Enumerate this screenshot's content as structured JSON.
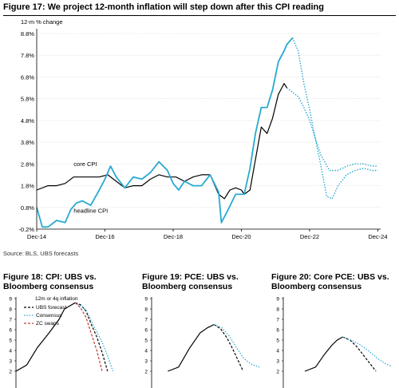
{
  "main": {
    "title": "Figure 17: We project 12-month inflation will step down after this CPI reading",
    "source": "Source: BLS, UBS forecasts"
  },
  "colors": {
    "core": "#000000",
    "headline": "#29a9d1",
    "forecast": "#29a9d1",
    "swap": "#c0392b"
  },
  "chart_data": [
    {
      "type": "line",
      "title": "Figure 17: We project 12-month inflation will step down after this CPI reading",
      "ylabel": "12-m % change",
      "ylim": [
        -0.2,
        8.8
      ],
      "yticks": [
        "-0.2%",
        "0.8%",
        "1.8%",
        "2.8%",
        "3.8%",
        "4.8%",
        "5.8%",
        "6.8%",
        "7.8%",
        "8.8%"
      ],
      "ytick_values": [
        -0.2,
        0.8,
        1.8,
        2.8,
        3.8,
        4.8,
        5.8,
        6.8,
        7.8,
        8.8
      ],
      "xlim": [
        2014.917,
        2025.0
      ],
      "xticks": [
        "Dec-14",
        "Dec-16",
        "Dec-18",
        "Dec-20",
        "Dec-22",
        "Dec-24"
      ],
      "xtick_values": [
        2014.917,
        2016.917,
        2018.917,
        2020.917,
        2022.917,
        2024.917
      ],
      "annotations": [
        {
          "text": "core CPI",
          "x": 2016.0,
          "y": 2.7
        },
        {
          "text": "headline CPI",
          "x": 2016.0,
          "y": 0.55
        }
      ],
      "series": [
        {
          "name": "core CPI",
          "style": "solid",
          "x": [
            2014.917,
            2015.25,
            2015.5,
            2015.75,
            2016.0,
            2016.25,
            2016.5,
            2016.75,
            2017.0,
            2017.25,
            2017.5,
            2017.75,
            2018.0,
            2018.25,
            2018.5,
            2018.75,
            2019.0,
            2019.25,
            2019.5,
            2019.75,
            2020.0,
            2020.25,
            2020.42,
            2020.58,
            2020.75,
            2020.917,
            2021.0,
            2021.17,
            2021.33,
            2021.5,
            2021.67,
            2021.83,
            2022.0,
            2022.17,
            2022.25
          ],
          "y": [
            1.6,
            1.8,
            1.8,
            1.9,
            2.2,
            2.2,
            2.2,
            2.2,
            2.3,
            2.0,
            1.7,
            1.8,
            1.8,
            2.1,
            2.3,
            2.2,
            2.2,
            2.0,
            2.2,
            2.3,
            2.3,
            1.4,
            1.2,
            1.6,
            1.7,
            1.6,
            1.4,
            1.6,
            3.0,
            4.5,
            4.2,
            4.9,
            6.0,
            6.5,
            6.3
          ]
        },
        {
          "name": "headline CPI",
          "style": "solid",
          "x": [
            2014.917,
            2015.08,
            2015.25,
            2015.5,
            2015.75,
            2015.917,
            2016.08,
            2016.25,
            2016.5,
            2016.75,
            2016.917,
            2017.08,
            2017.25,
            2017.5,
            2017.75,
            2018.0,
            2018.25,
            2018.5,
            2018.75,
            2018.917,
            2019.08,
            2019.25,
            2019.5,
            2019.75,
            2020.0,
            2020.25,
            2020.33,
            2020.5,
            2020.75,
            2020.917,
            2021.0,
            2021.17,
            2021.33,
            2021.5,
            2021.67,
            2021.83,
            2022.0,
            2022.17,
            2022.25,
            2022.42
          ],
          "y": [
            0.8,
            -0.1,
            -0.1,
            0.2,
            0.1,
            0.7,
            1.0,
            1.1,
            0.9,
            1.6,
            2.1,
            2.7,
            2.2,
            1.7,
            2.2,
            2.1,
            2.4,
            2.9,
            2.5,
            1.9,
            1.6,
            2.0,
            1.8,
            1.8,
            2.3,
            1.5,
            0.1,
            0.6,
            1.4,
            1.4,
            1.4,
            2.6,
            4.2,
            5.4,
            5.4,
            6.2,
            7.5,
            8.0,
            8.3,
            8.6
          ]
        },
        {
          "name": "core CPI forecast",
          "style": "dotted",
          "x": [
            2022.25,
            2022.42,
            2022.58,
            2022.75,
            2022.917,
            2023.08,
            2023.25,
            2023.5,
            2023.75,
            2024.0,
            2024.25,
            2024.5,
            2024.75,
            2024.917
          ],
          "y": [
            6.3,
            6.1,
            5.9,
            5.4,
            4.8,
            4.0,
            3.2,
            2.5,
            2.5,
            2.7,
            2.8,
            2.8,
            2.7,
            2.7
          ]
        },
        {
          "name": "headline CPI forecast",
          "style": "dotted",
          "x": [
            2022.42,
            2022.58,
            2022.75,
            2022.917,
            2023.08,
            2023.25,
            2023.42,
            2023.58,
            2023.75,
            2024.0,
            2024.25,
            2024.5,
            2024.75,
            2024.917
          ],
          "y": [
            8.6,
            8.0,
            6.5,
            5.3,
            4.0,
            2.7,
            1.3,
            1.2,
            1.8,
            2.3,
            2.5,
            2.6,
            2.5,
            2.5
          ]
        }
      ]
    },
    {
      "type": "line",
      "title": "Figure 18: CPI: UBS vs. Bloomberg consensus",
      "ylabel": "12m or 4q inflation",
      "ylim": [
        2,
        9
      ],
      "yticks": [
        "9",
        "8",
        "7",
        "6",
        "5",
        "4",
        "3",
        "2"
      ],
      "legend": [
        "UBS forecast",
        "Consensus",
        "ZC swaps"
      ],
      "series": [
        {
          "name": "history",
          "style": "solid",
          "x": [
            0,
            0.1,
            0.2,
            0.3,
            0.4,
            0.45,
            0.5,
            0.55
          ],
          "y": [
            2.0,
            2.6,
            4.3,
            5.6,
            7.0,
            8.0,
            8.3,
            8.6
          ]
        },
        {
          "name": "UBS forecast",
          "style": "dashed",
          "x": [
            0.55,
            0.6,
            0.65,
            0.7,
            0.75,
            0.8,
            0.85
          ],
          "y": [
            8.6,
            8.4,
            7.8,
            6.5,
            5.3,
            3.8,
            2.0
          ]
        },
        {
          "name": "Consensus",
          "style": "dotted",
          "x": [
            0.55,
            0.6,
            0.65,
            0.7,
            0.75,
            0.8,
            0.85,
            0.9
          ],
          "y": [
            8.6,
            8.3,
            7.9,
            6.8,
            5.8,
            4.8,
            3.5,
            2.0
          ]
        },
        {
          "name": "ZC swaps",
          "style": "dashed-red",
          "x": [
            0.55,
            0.6,
            0.65,
            0.7,
            0.75,
            0.8
          ],
          "y": [
            8.6,
            8.1,
            7.2,
            5.6,
            4.0,
            2.0
          ]
        }
      ]
    },
    {
      "type": "line",
      "title": "Figure 19: PCE: UBS vs. Bloomberg consensus",
      "ylim": [
        2,
        9
      ],
      "yticks": [
        "9",
        "8",
        "7",
        "6",
        "5",
        "4",
        "3",
        "2"
      ],
      "series": [
        {
          "name": "history",
          "style": "solid",
          "x": [
            0.15,
            0.25,
            0.35,
            0.45,
            0.52,
            0.58
          ],
          "y": [
            2.0,
            2.4,
            4.2,
            5.7,
            6.2,
            6.5
          ]
        },
        {
          "name": "UBS forecast",
          "style": "dashed",
          "x": [
            0.58,
            0.64,
            0.7,
            0.75,
            0.8,
            0.85
          ],
          "y": [
            6.5,
            6.1,
            5.2,
            4.2,
            3.1,
            2.0
          ]
        },
        {
          "name": "Consensus",
          "style": "dotted",
          "x": [
            0.58,
            0.65,
            0.72,
            0.78,
            0.85,
            0.92,
            1.0
          ],
          "y": [
            6.5,
            6.2,
            5.4,
            4.4,
            3.3,
            2.7,
            2.4
          ]
        }
      ]
    },
    {
      "type": "line",
      "title": "Figure 20: Core PCE: UBS vs. Bloomberg consensus",
      "ylim": [
        2,
        9
      ],
      "yticks": [
        "9",
        "8",
        "7",
        "6",
        "5",
        "4",
        "3",
        "2"
      ],
      "series": [
        {
          "name": "history",
          "style": "solid",
          "x": [
            0.2,
            0.3,
            0.38,
            0.45,
            0.5,
            0.55
          ],
          "y": [
            2.0,
            2.4,
            3.6,
            4.5,
            5.0,
            5.3
          ]
        },
        {
          "name": "UBS forecast",
          "style": "dashed",
          "x": [
            0.55,
            0.62,
            0.68,
            0.74,
            0.8,
            0.86
          ],
          "y": [
            5.3,
            5.0,
            4.4,
            3.6,
            2.8,
            2.0
          ]
        },
        {
          "name": "Consensus",
          "style": "dotted",
          "x": [
            0.55,
            0.63,
            0.72,
            0.8,
            0.88,
            0.95,
            1.0
          ],
          "y": [
            5.3,
            5.0,
            4.5,
            3.9,
            3.2,
            2.7,
            2.5
          ]
        }
      ]
    }
  ]
}
